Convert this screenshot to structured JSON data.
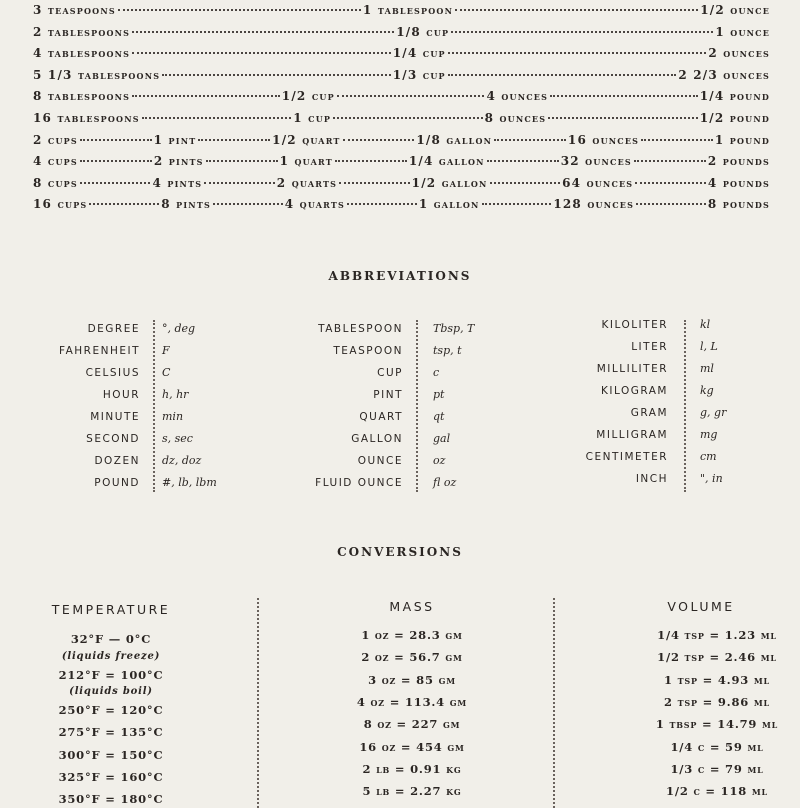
{
  "equivalents": [
    [
      "3 teaspoons",
      "1 tablespoon",
      "1/2 ounce"
    ],
    [
      "2 tablespoons",
      "1/8 cup",
      "1 ounce"
    ],
    [
      "4 tablespoons",
      "1/4 cup",
      "2 ounces"
    ],
    [
      "5 1/3 tablespoons",
      "1/3 cup",
      "2 2/3 ounces"
    ],
    [
      "8 tablespoons",
      "1/2 cup",
      "4 ounces",
      "1/4 pound"
    ],
    [
      "16 tablespoons",
      "1 cup",
      "8 ounces",
      "1/2 pound"
    ],
    [
      "2 cups",
      "1 pint",
      "1/2 quart",
      "1/8 gallon",
      "16 ounces",
      "1 pound"
    ],
    [
      "4 cups",
      "2 pints",
      "1 quart",
      "1/4 gallon",
      "32 ounces",
      "2 pounds"
    ],
    [
      "8 cups",
      "4 pints",
      "2 quarts",
      "1/2 gallon",
      "64 ounces",
      "4 pounds"
    ],
    [
      "16 cups",
      "8 pints",
      "4 quarts",
      "1 gallon",
      "128 ounces",
      "8 pounds"
    ]
  ],
  "abbreviations": {
    "title": "ABBREVIATIONS",
    "groups": [
      [
        [
          "DEGREE",
          "°, deg"
        ],
        [
          "FAHRENHEIT",
          "F"
        ],
        [
          "CELSIUS",
          "C"
        ],
        [
          "HOUR",
          "h, hr"
        ],
        [
          "MINUTE",
          "min"
        ],
        [
          "SECOND",
          "s, sec"
        ],
        [
          "DOZEN",
          "dz, doz"
        ],
        [
          "POUND",
          "#, lb, lbm"
        ]
      ],
      [
        [
          "TABLESPOON",
          "Tbsp, T"
        ],
        [
          "TEASPOON",
          "tsp, t"
        ],
        [
          "CUP",
          "c"
        ],
        [
          "PINT",
          "pt"
        ],
        [
          "QUART",
          "qt"
        ],
        [
          "GALLON",
          "gal"
        ],
        [
          "OUNCE",
          "oz"
        ],
        [
          "FLUID OUNCE",
          "fl oz"
        ]
      ],
      [
        [
          "KILOLITER",
          "kl"
        ],
        [
          "LITER",
          "l, L"
        ],
        [
          "MILLILITER",
          "ml"
        ],
        [
          "KILOGRAM",
          "kg"
        ],
        [
          "GRAM",
          "g, gr"
        ],
        [
          "MILLIGRAM",
          "mg"
        ],
        [
          "CENTIMETER",
          "cm"
        ],
        [
          "INCH",
          "\", in"
        ]
      ]
    ]
  },
  "conversions": {
    "title": "CONVERSIONS",
    "temperature": {
      "header": "TEMPERATURE",
      "items": [
        {
          "text": "32°F — 0°C"
        },
        {
          "text": "(liquids freeze)",
          "note": true
        },
        {
          "text": "212°F = 100°C"
        },
        {
          "text": "(liquids boil)",
          "note": true
        },
        {
          "text": "250°F = 120°C"
        },
        {
          "text": "275°F = 135°C"
        },
        {
          "text": "300°F = 150°C"
        },
        {
          "text": "325°F = 160°C"
        },
        {
          "text": "350°F = 180°C"
        }
      ]
    },
    "mass": {
      "header": "MASS",
      "items": [
        "1 oz = 28.3 gm",
        "2 oz = 56.7 gm",
        "3 oz = 85 gm",
        "4 oz = 113.4 gm",
        "8 oz = 227 gm",
        "16 oz = 454 gm",
        "2 lb = 0.91 kg",
        "5 lb = 2.27 kg"
      ]
    },
    "volume": {
      "header": "VOLUME",
      "items": [
        "1/4 tsp = 1.23 ml",
        "1/2 tsp = 2.46 ml",
        "1 tsp = 4.93 ml",
        "2 tsp = 9.86 ml",
        "1 tbsp = 14.79 ml",
        "1/4 c = 59 ml",
        "1/3 c = 79 ml",
        "1/2 c = 118 ml"
      ]
    }
  }
}
